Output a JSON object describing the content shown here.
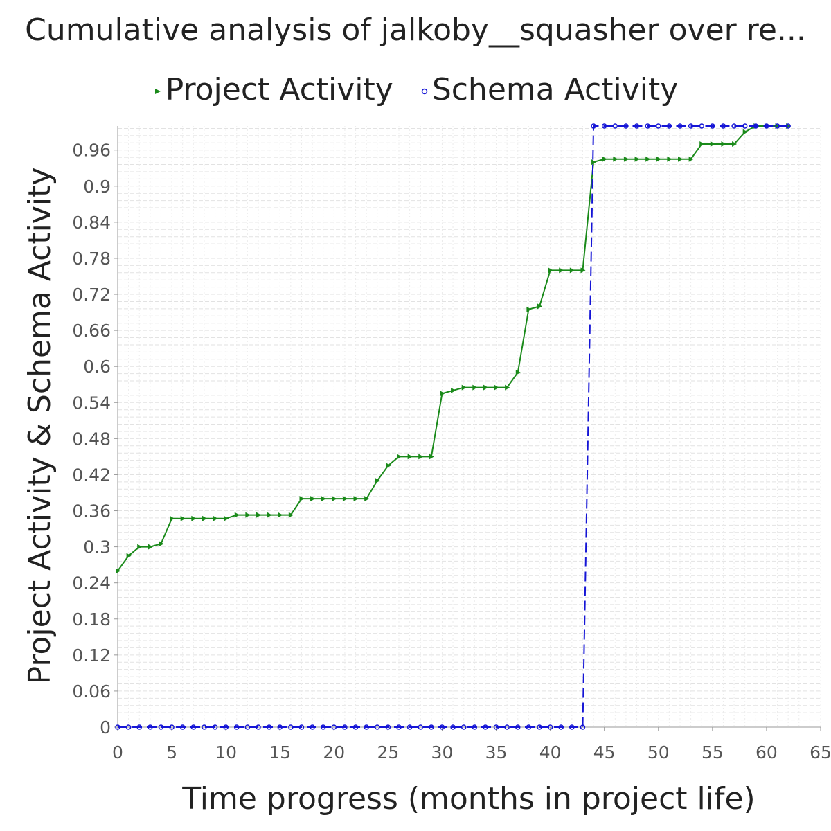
{
  "chart_data": {
    "type": "line",
    "title": "Cumulative analysis of jalkoby__squasher over re...",
    "xlabel": "Time progress (months in project life)",
    "ylabel": "Project Activity & Schema Activity",
    "xlim": [
      0,
      65
    ],
    "ylim": [
      0,
      1.0
    ],
    "x_ticks": [
      0,
      5,
      10,
      15,
      20,
      25,
      30,
      35,
      40,
      45,
      50,
      55,
      60,
      65
    ],
    "y_ticks": [
      0,
      0.06,
      0.12,
      0.18,
      0.24,
      0.3,
      0.36,
      0.42,
      0.48,
      0.54,
      0.6,
      0.66,
      0.72,
      0.78,
      0.84,
      0.9,
      0.96
    ],
    "y_tick_labels": [
      "0",
      "0.06",
      "0.12",
      "0.18",
      "0.24",
      "0.3",
      "0.36",
      "0.42",
      "0.48",
      "0.54",
      "0.6",
      "0.66",
      "0.72",
      "0.78",
      "0.84",
      "0.9",
      "0.96"
    ],
    "grid": true,
    "legend_position": "top",
    "series": [
      {
        "name": "Project Activity",
        "color": "#1a8a1a",
        "marker": "triangle-right",
        "line_style": "solid",
        "x": [
          0,
          1,
          2,
          3,
          4,
          5,
          6,
          7,
          8,
          9,
          10,
          11,
          12,
          13,
          14,
          15,
          16,
          17,
          18,
          19,
          20,
          21,
          22,
          23,
          24,
          25,
          26,
          27,
          28,
          29,
          30,
          31,
          32,
          33,
          34,
          35,
          36,
          37,
          38,
          39,
          40,
          41,
          42,
          43,
          44,
          45,
          46,
          47,
          48,
          49,
          50,
          51,
          52,
          53,
          54,
          55,
          56,
          57,
          58,
          59,
          60,
          61,
          62
        ],
        "y": [
          0.26,
          0.285,
          0.3,
          0.3,
          0.305,
          0.347,
          0.347,
          0.347,
          0.347,
          0.347,
          0.347,
          0.353,
          0.353,
          0.353,
          0.353,
          0.353,
          0.353,
          0.38,
          0.38,
          0.38,
          0.38,
          0.38,
          0.38,
          0.38,
          0.41,
          0.435,
          0.45,
          0.45,
          0.45,
          0.45,
          0.555,
          0.56,
          0.565,
          0.565,
          0.565,
          0.565,
          0.565,
          0.59,
          0.695,
          0.7,
          0.76,
          0.76,
          0.76,
          0.76,
          0.94,
          0.945,
          0.945,
          0.945,
          0.945,
          0.945,
          0.945,
          0.945,
          0.945,
          0.945,
          0.97,
          0.97,
          0.97,
          0.97,
          0.99,
          1.0,
          1.0,
          1.0,
          1.0
        ]
      },
      {
        "name": "Schema Activity",
        "color": "#1515d6",
        "marker": "circle",
        "line_style": "dashed",
        "x": [
          0,
          1,
          2,
          3,
          4,
          5,
          6,
          7,
          8,
          9,
          10,
          11,
          12,
          13,
          14,
          15,
          16,
          17,
          18,
          19,
          20,
          21,
          22,
          23,
          24,
          25,
          26,
          27,
          28,
          29,
          30,
          31,
          32,
          33,
          34,
          35,
          36,
          37,
          38,
          39,
          40,
          41,
          42,
          43,
          44,
          45,
          46,
          47,
          48,
          49,
          50,
          51,
          52,
          53,
          54,
          55,
          56,
          57,
          58,
          59,
          60,
          61,
          62
        ],
        "y": [
          0,
          0,
          0,
          0,
          0,
          0,
          0,
          0,
          0,
          0,
          0,
          0,
          0,
          0,
          0,
          0,
          0,
          0,
          0,
          0,
          0,
          0,
          0,
          0,
          0,
          0,
          0,
          0,
          0,
          0,
          0,
          0,
          0,
          0,
          0,
          0,
          0,
          0,
          0,
          0,
          0,
          0,
          0,
          0,
          1.0,
          1.0,
          1.0,
          1.0,
          1.0,
          1.0,
          1.0,
          1.0,
          1.0,
          1.0,
          1.0,
          1.0,
          1.0,
          1.0,
          1.0,
          1.0,
          1.0,
          1.0,
          1.0
        ]
      }
    ]
  }
}
